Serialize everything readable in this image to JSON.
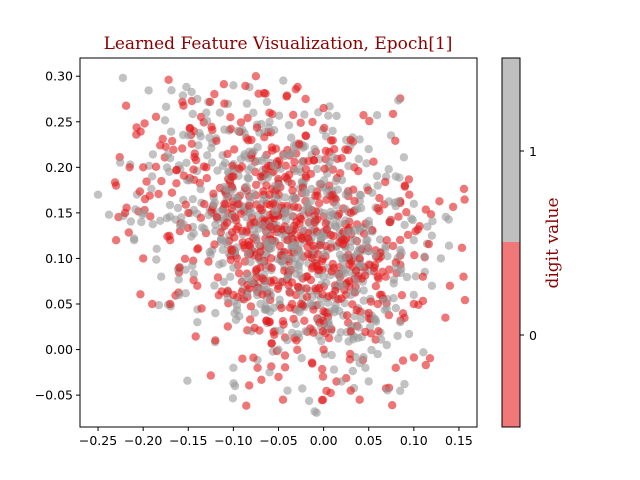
{
  "chart_data": {
    "type": "scatter",
    "title": "Learned Feature Visualization, Epoch[1]",
    "xlabel": "",
    "ylabel": "",
    "xlim": [
      -0.27,
      0.17
    ],
    "ylim": [
      -0.085,
      0.32
    ],
    "x_ticks": [
      -0.25,
      -0.2,
      -0.15,
      -0.1,
      -0.05,
      0.0,
      0.05,
      0.1,
      0.15
    ],
    "x_tick_labels": [
      "−0.25",
      "−0.20",
      "−0.15",
      "−0.10",
      "−0.05",
      "0.00",
      "0.05",
      "0.10",
      "0.15"
    ],
    "y_ticks": [
      -0.05,
      0.0,
      0.05,
      0.1,
      0.15,
      0.2,
      0.25,
      0.3
    ],
    "y_tick_labels": [
      "−0.05",
      "0.00",
      "0.05",
      "0.10",
      "0.15",
      "0.20",
      "0.25",
      "0.30"
    ],
    "grid": false,
    "marker_alpha": 0.6,
    "colorbar": {
      "label": "digit value",
      "ticks": [
        "0",
        "1"
      ],
      "colors": {
        "0": "#e31a1c",
        "1": "#999999"
      },
      "segment_colors": {
        "0": "#f07878",
        "1": "#bfbfbf"
      }
    },
    "series": [
      {
        "class": "1",
        "color": "#999999",
        "cloud": {
          "center": [
            -0.04,
            0.125
          ],
          "sd": [
            0.075,
            0.07
          ]
        },
        "points": [
          [
            -0.25,
            0.17
          ],
          [
            -0.1,
            0.29
          ],
          [
            -0.085,
            0.27
          ],
          [
            -0.14,
            0.275
          ],
          [
            -0.095,
            0.24
          ],
          [
            -0.13,
            0.26
          ],
          [
            -0.06,
            0.25
          ],
          [
            -0.01,
            0.22
          ],
          [
            0.01,
            0.24
          ],
          [
            0.025,
            0.23
          ],
          [
            0.05,
            0.22
          ],
          [
            0.06,
            0.18
          ],
          [
            0.08,
            0.19
          ],
          [
            0.1,
            0.16
          ],
          [
            0.115,
            0.135
          ],
          [
            0.12,
            0.125
          ],
          [
            0.1,
            0.12
          ],
          [
            0.13,
            0.1
          ],
          [
            0.12,
            0.07
          ],
          [
            0.1,
            0.06
          ],
          [
            0.085,
            0.03
          ],
          [
            0.07,
            0.005
          ],
          [
            0.06,
            -0.005
          ],
          [
            0.04,
            -0.015
          ],
          [
            0.02,
            -0.035
          ],
          [
            0.05,
            -0.035
          ],
          [
            -0.01,
            -0.068
          ],
          [
            -0.04,
            -0.045
          ],
          [
            -0.06,
            -0.025
          ],
          [
            -0.1,
            -0.02
          ],
          [
            -0.14,
            0.03
          ],
          [
            -0.16,
            0.06
          ],
          [
            -0.18,
            0.08
          ],
          [
            -0.21,
            0.12
          ],
          [
            -0.2,
            0.15
          ],
          [
            -0.19,
            0.19
          ],
          [
            -0.17,
            0.21
          ],
          [
            -0.15,
            0.235
          ],
          [
            -0.115,
            0.26
          ],
          [
            -0.08,
            0.2
          ],
          [
            -0.05,
            0.18
          ],
          [
            -0.03,
            0.1
          ],
          [
            0.0,
            0.08
          ],
          [
            0.03,
            0.06
          ],
          [
            -0.07,
            0.05
          ],
          [
            -0.1,
            0.09
          ],
          [
            -0.12,
            0.13
          ],
          [
            0.0,
            0.15
          ],
          [
            0.05,
            0.13
          ],
          [
            -0.02,
            0.02
          ],
          [
            -0.05,
            0.0
          ],
          [
            0.02,
            0.1
          ],
          [
            -0.08,
            0.15
          ],
          [
            0.08,
            0.09
          ],
          [
            -0.035,
            0.215
          ],
          [
            -0.145,
            0.165
          ],
          [
            0.04,
            0.17
          ],
          [
            -0.06,
            0.11
          ],
          [
            0.07,
            0.045
          ],
          [
            -0.12,
            0.04
          ]
        ]
      },
      {
        "class": "0",
        "color": "#e31a1c",
        "cloud": {
          "center": [
            -0.04,
            0.125
          ],
          "sd": [
            0.075,
            0.07
          ]
        },
        "points": [
          [
            -0.075,
            0.3
          ],
          [
            -0.02,
            0.275
          ],
          [
            0.0,
            0.265
          ],
          [
            -0.06,
            0.26
          ],
          [
            -0.11,
            0.27
          ],
          [
            -0.23,
            0.18
          ],
          [
            -0.215,
            0.2
          ],
          [
            -0.2,
            0.2
          ],
          [
            -0.22,
            0.15
          ],
          [
            -0.23,
            0.12
          ],
          [
            -0.2,
            0.1
          ],
          [
            -0.19,
            0.05
          ],
          [
            -0.17,
            0.05
          ],
          [
            -0.12,
            0.01
          ],
          [
            -0.09,
            -0.01
          ],
          [
            -0.05,
            -0.03
          ],
          [
            -0.045,
            -0.055
          ],
          [
            0.03,
            -0.045
          ],
          [
            0.04,
            -0.055
          ],
          [
            0.08,
            -0.02
          ],
          [
            0.1,
            0.05
          ],
          [
            0.11,
            0.08
          ],
          [
            0.14,
            0.07
          ],
          [
            0.155,
            0.08
          ],
          [
            0.135,
            0.035
          ],
          [
            0.09,
            0.18
          ],
          [
            0.095,
            0.17
          ],
          [
            0.06,
            0.155
          ],
          [
            0.03,
            0.23
          ],
          [
            0.02,
            0.21
          ],
          [
            -0.08,
            0.23
          ],
          [
            -0.1,
            0.19
          ],
          [
            -0.13,
            0.2
          ],
          [
            -0.15,
            0.15
          ],
          [
            -0.17,
            0.12
          ],
          [
            -0.16,
            0.09
          ],
          [
            -0.14,
            0.07
          ],
          [
            -0.1,
            0.06
          ],
          [
            -0.07,
            0.09
          ],
          [
            -0.04,
            0.12
          ],
          [
            -0.01,
            0.14
          ],
          [
            0.02,
            0.12
          ],
          [
            0.04,
            0.1
          ],
          [
            0.06,
            0.08
          ],
          [
            0.05,
            0.04
          ],
          [
            0.03,
            0.02
          ],
          [
            0.0,
            0.0
          ],
          [
            -0.03,
            0.01
          ],
          [
            -0.06,
            0.03
          ],
          [
            -0.09,
            0.13
          ],
          [
            -0.11,
            0.16
          ],
          [
            -0.06,
            0.17
          ],
          [
            -0.02,
            0.19
          ],
          [
            0.01,
            0.17
          ],
          [
            0.03,
            0.15
          ],
          [
            -0.05,
            0.07
          ],
          [
            -0.025,
            0.05
          ],
          [
            0.01,
            0.06
          ],
          [
            0.07,
            0.12
          ],
          [
            -0.14,
            0.11
          ]
        ]
      }
    ]
  }
}
